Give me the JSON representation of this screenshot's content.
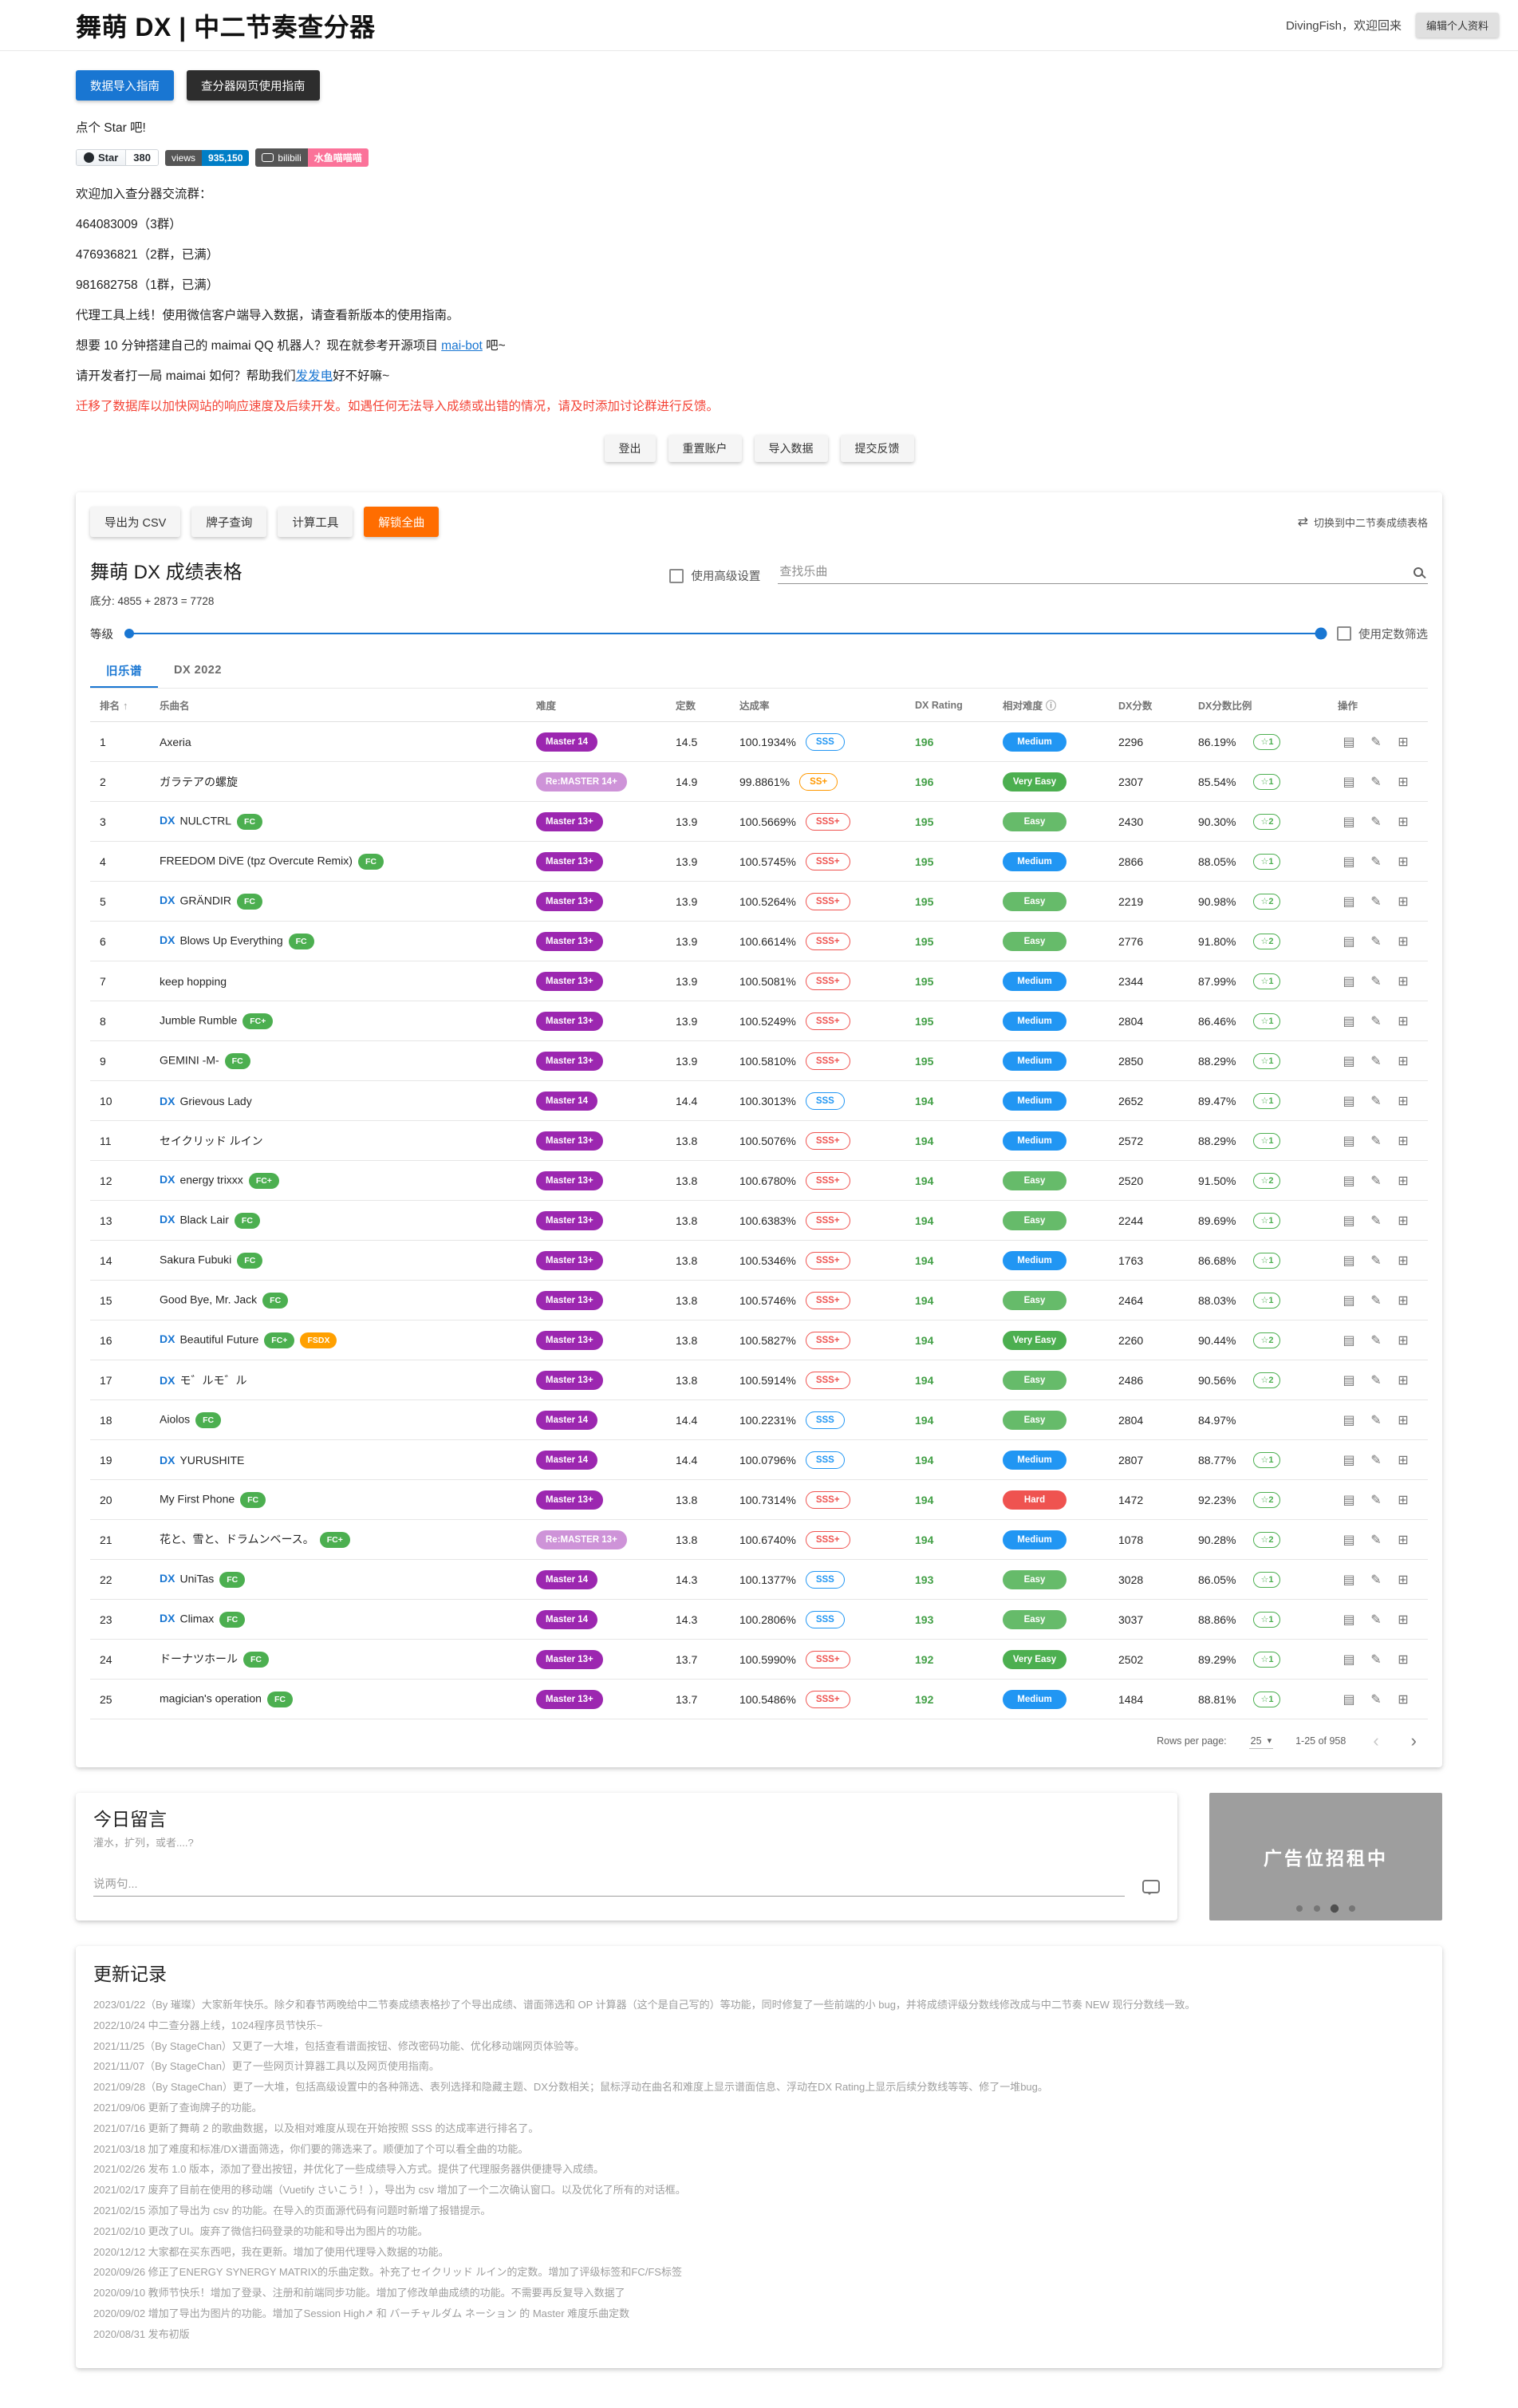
{
  "icons": {
    "sort_asc": "↑",
    "info": "ⓘ",
    "switch": "⇄",
    "star_outline": "☆",
    "caret_down": "▾",
    "chevron_left": "‹",
    "chevron_right": "›",
    "cover": "▤",
    "edit": "✎",
    "detail": "⊞"
  },
  "header": {
    "title": "舞萌 DX | 中二节奏查分器",
    "welcome": "DivingFish，欢迎回来",
    "edit_profile": "编辑个人资料"
  },
  "intro": {
    "guide_buttons": [
      "数据导入指南",
      "查分器网页使用指南"
    ],
    "star_text": "点个 Star 吧!",
    "badges": {
      "github": {
        "label": "Star",
        "count": "380"
      },
      "views": {
        "label": "views",
        "value": "935,150"
      },
      "bilibili": {
        "label": "bilibili",
        "value": "水鱼喵喵喵"
      }
    },
    "lines": [
      "欢迎加入查分器交流群：",
      "464083009（3群）",
      "476936821（2群，已满）",
      "981682758（1群，已满）",
      "代理工具上线！使用微信客户端导入数据，请查看新版本的使用指南。"
    ],
    "maibot_line": {
      "before": "想要 10 分钟搭建自己的 maimai QQ 机器人？现在就参考开源项目 ",
      "link": "mai-bot",
      "after": " 吧~"
    },
    "donate_line": {
      "before": "请开发者打一局 maimai 如何？帮助我们",
      "link": "发发电",
      "after": "好不好嘛~"
    },
    "warning": "迁移了数据库以加快网站的响应速度及后续开发。如遇任何无法导入成绩或出错的情况，请及时添加讨论群进行反馈。",
    "actions": [
      "登出",
      "重置账户",
      "导入数据",
      "提交反馈"
    ]
  },
  "score_card": {
    "toolbar": {
      "export_csv": "导出为 CSV",
      "plate_query": "牌子查询",
      "calculator": "计算工具",
      "unlock_all": "解锁全曲",
      "switch_label": "切换到中二节奏成绩表格"
    },
    "title": "舞萌 DX 成绩表格",
    "advanced_label": "使用高级设置",
    "search_placeholder": "查找乐曲",
    "base_score": "底分: 4855 + 2873 = 7728",
    "level_label": "等级",
    "const_filter_label": "使用定数筛选",
    "tabs": [
      "旧乐谱",
      "DX 2022"
    ],
    "table": {
      "headers": [
        "排名",
        "乐曲名",
        "难度",
        "定数",
        "达成率",
        "DX Rating",
        "相对难度",
        "DX分数",
        "DX分数比例",
        "操作"
      ],
      "rows": [
        {
          "rank": "1",
          "dx": null,
          "name": "Axeria",
          "badges": [],
          "diff": "Master 14",
          "constant": "14.5",
          "rate": "100.1934%",
          "grade": "SSS",
          "rating": "196",
          "fit": "Medium",
          "dxscore": "2296",
          "ratio": "86.19%",
          "star": "☆1"
        },
        {
          "rank": "2",
          "dx": null,
          "name": "ガラテアの螺旋",
          "badges": [],
          "diff": "Re:MASTER 14+",
          "constant": "14.9",
          "rate": "99.8861%",
          "grade": "SS+",
          "rating": "196",
          "fit": "Very Easy",
          "dxscore": "2307",
          "ratio": "85.54%",
          "star": "☆1"
        },
        {
          "rank": "3",
          "dx": "DX",
          "name": "NULCTRL",
          "badges": [
            "FC"
          ],
          "diff": "Master 13+",
          "constant": "13.9",
          "rate": "100.5669%",
          "grade": "SSS+",
          "rating": "195",
          "fit": "Easy",
          "dxscore": "2430",
          "ratio": "90.30%",
          "star": "☆2"
        },
        {
          "rank": "4",
          "dx": null,
          "name": "FREEDOM DiVE (tpz Overcute Remix)",
          "badges": [
            "FC"
          ],
          "diff": "Master 13+",
          "constant": "13.9",
          "rate": "100.5745%",
          "grade": "SSS+",
          "rating": "195",
          "fit": "Medium",
          "dxscore": "2866",
          "ratio": "88.05%",
          "star": "☆1"
        },
        {
          "rank": "5",
          "dx": "DX",
          "name": "GRÄNDIR",
          "badges": [
            "FC"
          ],
          "diff": "Master 13+",
          "constant": "13.9",
          "rate": "100.5264%",
          "grade": "SSS+",
          "rating": "195",
          "fit": "Easy",
          "dxscore": "2219",
          "ratio": "90.98%",
          "star": "☆2"
        },
        {
          "rank": "6",
          "dx": "DX",
          "name": "Blows Up Everything",
          "badges": [
            "FC"
          ],
          "diff": "Master 13+",
          "constant": "13.9",
          "rate": "100.6614%",
          "grade": "SSS+",
          "rating": "195",
          "fit": "Easy",
          "dxscore": "2776",
          "ratio": "91.80%",
          "star": "☆2"
        },
        {
          "rank": "7",
          "dx": null,
          "name": "keep hopping",
          "badges": [],
          "diff": "Master 13+",
          "constant": "13.9",
          "rate": "100.5081%",
          "grade": "SSS+",
          "rating": "195",
          "fit": "Medium",
          "dxscore": "2344",
          "ratio": "87.99%",
          "star": "☆1"
        },
        {
          "rank": "8",
          "dx": null,
          "name": "Jumble Rumble",
          "badges": [
            "FC+"
          ],
          "diff": "Master 13+",
          "constant": "13.9",
          "rate": "100.5249%",
          "grade": "SSS+",
          "rating": "195",
          "fit": "Medium",
          "dxscore": "2804",
          "ratio": "86.46%",
          "star": "☆1"
        },
        {
          "rank": "9",
          "dx": null,
          "name": "GEMINI -M-",
          "badges": [
            "FC"
          ],
          "diff": "Master 13+",
          "constant": "13.9",
          "rate": "100.5810%",
          "grade": "SSS+",
          "rating": "195",
          "fit": "Medium",
          "dxscore": "2850",
          "ratio": "88.29%",
          "star": "☆1"
        },
        {
          "rank": "10",
          "dx": "DX",
          "name": "Grievous Lady",
          "badges": [],
          "diff": "Master 14",
          "constant": "14.4",
          "rate": "100.3013%",
          "grade": "SSS",
          "rating": "194",
          "fit": "Medium",
          "dxscore": "2652",
          "ratio": "89.47%",
          "star": "☆1"
        },
        {
          "rank": "11",
          "dx": null,
          "name": "セイクリッド ルイン",
          "badges": [],
          "diff": "Master 13+",
          "constant": "13.8",
          "rate": "100.5076%",
          "grade": "SSS+",
          "rating": "194",
          "fit": "Medium",
          "dxscore": "2572",
          "ratio": "88.29%",
          "star": "☆1"
        },
        {
          "rank": "12",
          "dx": "DX",
          "name": "energy trixxx",
          "badges": [
            "FC+"
          ],
          "diff": "Master 13+",
          "constant": "13.8",
          "rate": "100.6780%",
          "grade": "SSS+",
          "rating": "194",
          "fit": "Easy",
          "dxscore": "2520",
          "ratio": "91.50%",
          "star": "☆2"
        },
        {
          "rank": "13",
          "dx": "DX",
          "name": "Black Lair",
          "badges": [
            "FC"
          ],
          "diff": "Master 13+",
          "constant": "13.8",
          "rate": "100.6383%",
          "grade": "SSS+",
          "rating": "194",
          "fit": "Easy",
          "dxscore": "2244",
          "ratio": "89.69%",
          "star": "☆1"
        },
        {
          "rank": "14",
          "dx": null,
          "name": "Sakura Fubuki",
          "badges": [
            "FC"
          ],
          "diff": "Master 13+",
          "constant": "13.8",
          "rate": "100.5346%",
          "grade": "SSS+",
          "rating": "194",
          "fit": "Medium",
          "dxscore": "1763",
          "ratio": "86.68%",
          "star": "☆1"
        },
        {
          "rank": "15",
          "dx": null,
          "name": "Good Bye, Mr. Jack",
          "badges": [
            "FC"
          ],
          "diff": "Master 13+",
          "constant": "13.8",
          "rate": "100.5746%",
          "grade": "SSS+",
          "rating": "194",
          "fit": "Easy",
          "dxscore": "2464",
          "ratio": "88.03%",
          "star": "☆1"
        },
        {
          "rank": "16",
          "dx": "DX",
          "name": "Beautiful Future",
          "badges": [
            "FC+",
            "FSDX"
          ],
          "diff": "Master 13+",
          "constant": "13.8",
          "rate": "100.5827%",
          "grade": "SSS+",
          "rating": "194",
          "fit": "Very Easy",
          "dxscore": "2260",
          "ratio": "90.44%",
          "star": "☆2"
        },
        {
          "rank": "17",
          "dx": "DX",
          "name": "モ゛ルモ゛ル",
          "badges": [],
          "diff": "Master 13+",
          "constant": "13.8",
          "rate": "100.5914%",
          "grade": "SSS+",
          "rating": "194",
          "fit": "Easy",
          "dxscore": "2486",
          "ratio": "90.56%",
          "star": "☆2"
        },
        {
          "rank": "18",
          "dx": null,
          "name": "Aiolos",
          "badges": [
            "FC"
          ],
          "diff": "Master 14",
          "constant": "14.4",
          "rate": "100.2231%",
          "grade": "SSS",
          "rating": "194",
          "fit": "Easy",
          "dxscore": "2804",
          "ratio": "84.97%",
          "star": null
        },
        {
          "rank": "19",
          "dx": "DX",
          "name": "YURUSHITE",
          "badges": [],
          "diff": "Master 14",
          "constant": "14.4",
          "rate": "100.0796%",
          "grade": "SSS",
          "rating": "194",
          "fit": "Medium",
          "dxscore": "2807",
          "ratio": "88.77%",
          "star": "☆1"
        },
        {
          "rank": "20",
          "dx": null,
          "name": "My First Phone",
          "badges": [
            "FC"
          ],
          "diff": "Master 13+",
          "constant": "13.8",
          "rate": "100.7314%",
          "grade": "SSS+",
          "rating": "194",
          "fit": "Hard",
          "dxscore": "1472",
          "ratio": "92.23%",
          "star": "☆2"
        },
        {
          "rank": "21",
          "dx": null,
          "name": "花と、雪と、ドラムンベース。",
          "badges": [
            "FC+"
          ],
          "diff": "Re:MASTER 13+",
          "constant": "13.8",
          "rate": "100.6740%",
          "grade": "SSS+",
          "rating": "194",
          "fit": "Medium",
          "dxscore": "1078",
          "ratio": "90.28%",
          "star": "☆2"
        },
        {
          "rank": "22",
          "dx": "DX",
          "name": "UniTas",
          "badges": [
            "FC"
          ],
          "diff": "Master 14",
          "constant": "14.3",
          "rate": "100.1377%",
          "grade": "SSS",
          "rating": "193",
          "fit": "Easy",
          "dxscore": "3028",
          "ratio": "86.05%",
          "star": "☆1"
        },
        {
          "rank": "23",
          "dx": "DX",
          "name": "Climax",
          "badges": [
            "FC"
          ],
          "diff": "Master 14",
          "constant": "14.3",
          "rate": "100.2806%",
          "grade": "SSS",
          "rating": "193",
          "fit": "Easy",
          "dxscore": "3037",
          "ratio": "88.86%",
          "star": "☆1"
        },
        {
          "rank": "24",
          "dx": null,
          "name": "ドーナツホール",
          "badges": [
            "FC"
          ],
          "diff": "Master 13+",
          "constant": "13.7",
          "rate": "100.5990%",
          "grade": "SSS+",
          "rating": "192",
          "fit": "Very Easy",
          "dxscore": "2502",
          "ratio": "89.29%",
          "star": "☆1"
        },
        {
          "rank": "25",
          "dx": null,
          "name": "magician's operation",
          "badges": [
            "FC"
          ],
          "diff": "Master 13+",
          "constant": "13.7",
          "rate": "100.5486%",
          "grade": "SSS+",
          "rating": "192",
          "fit": "Medium",
          "dxscore": "1484",
          "ratio": "88.81%",
          "star": "☆1"
        }
      ]
    },
    "pagination": {
      "label": "Rows per page:",
      "per_page": "25",
      "range": "1-25 of 958"
    }
  },
  "message_card": {
    "title": "今日留言",
    "subtitle": "灌水，扩列，或者....?",
    "placeholder": "说两句..."
  },
  "ad": {
    "text": "广告位招租中"
  },
  "changelog": {
    "title": "更新记录",
    "entries": [
      "2023/01/22（By 璀璨）大家新年快乐。除夕和春节两晚给中二节奏成绩表格抄了个导出成绩、谱面筛选和 OP 计算器（这个是自己写的）等功能，同时修复了一些前端的小 bug，并将成绩评级分数线修改成与中二节奏 NEW 现行分数线一致。",
      "2022/10/24 中二查分器上线，1024程序员节快乐~",
      "2021/11/25（By StageChan）又更了一大堆，包括查看谱面按钮、修改密码功能、优化移动端网页体验等。",
      "2021/11/07（By StageChan）更了一些网页计算器工具以及网页使用指南。",
      "2021/09/28（By StageChan）更了一大堆，包括高级设置中的各种筛选、表列选择和隐藏主题、DX分数相关；鼠标浮动在曲名和难度上显示谱面信息、浮动在DX Rating上显示后续分数线等等、修了一堆bug。",
      "2021/09/06 更新了查询牌子的功能。",
      "2021/07/16 更新了舞萌 2 的歌曲数据，以及相对难度从现在开始按照 SSS 的达成率进行排名了。",
      "2021/03/18 加了难度和标准/DX谱面筛选，你们要的筛选来了。顺便加了个可以看全曲的功能。",
      "2021/02/26 发布 1.0 版本，添加了登出按钮，并优化了一些成绩导入方式。提供了代理服务器供便捷导入成绩。",
      "2021/02/17 废弃了目前在使用的移动端（Vuetify さいこう！），导出为 csv 增加了一个二次确认窗口。以及优化了所有的对话框。",
      "2021/02/15 添加了导出为 csv 的功能。在导入的页面源代码有问题时新增了报错提示。",
      "2021/02/10 更改了UI。废弃了微信扫码登录的功能和导出为图片的功能。",
      "2020/12/12 大家都在买东西吧，我在更新。增加了使用代理导入数据的功能。",
      "2020/09/26 修正了ENERGY SYNERGY MATRIX的乐曲定数。补充了セイクリッド ルイン的定数。增加了评级标签和FC/FS标签",
      "2020/09/10 教师节快乐！增加了登录、注册和前端同步功能。增加了修改单曲成绩的功能。不需要再反复导入数据了",
      "2020/09/02 增加了导出为图片的功能。增加了Session High↗ 和 バーチャルダム ネーション 的 Master 难度乐曲定数",
      "2020/08/31 发布初版"
    ]
  }
}
